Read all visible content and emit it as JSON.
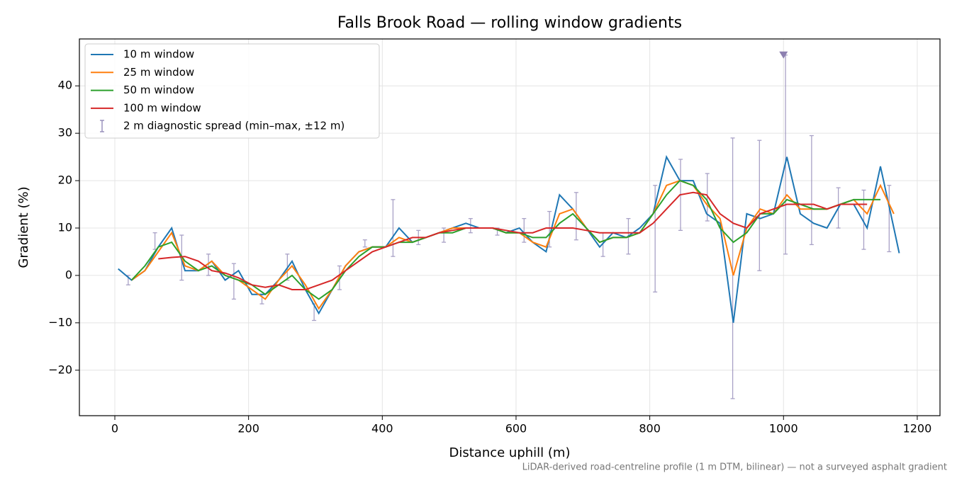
{
  "chart_data": {
    "type": "line",
    "title": "Falls Brook Road — rolling window gradients",
    "xlabel": "Distance uphill (m)",
    "ylabel": "Gradient (%)",
    "footnote": "LiDAR-derived road-centreline profile (1 m DTM, bilinear) — not a surveyed asphalt gradient",
    "xlim": [
      -53,
      1234
    ],
    "ylim": [
      -29.6,
      49.9
    ],
    "xticks": [
      0,
      200,
      400,
      600,
      800,
      1000,
      1200
    ],
    "yticks": [
      {
        "value": -20,
        "label": "−20"
      },
      {
        "value": -10,
        "label": "−10"
      },
      0,
      10,
      20,
      30,
      40
    ],
    "grid": true,
    "legend": "upper left",
    "x": [
      5,
      25,
      45,
      65,
      85,
      105,
      125,
      145,
      165,
      185,
      205,
      225,
      245,
      265,
      285,
      305,
      325,
      345,
      365,
      385,
      405,
      425,
      445,
      465,
      485,
      505,
      525,
      545,
      565,
      585,
      605,
      625,
      645,
      665,
      685,
      705,
      725,
      745,
      765,
      785,
      805,
      825,
      845,
      865,
      885,
      905,
      925,
      945,
      965,
      985,
      1005,
      1025,
      1045,
      1065,
      1085,
      1105,
      1125,
      1145,
      1165,
      1173
    ],
    "series": [
      {
        "name": "10 m window",
        "color": "#1f77b4",
        "values": [
          1.4,
          -1,
          1,
          6,
          10,
          1,
          1,
          3,
          -1,
          1,
          -4,
          -4,
          -1,
          3,
          -3,
          -8,
          -3,
          2,
          5,
          6,
          6,
          10,
          7,
          8,
          9,
          10,
          11,
          10,
          10,
          9,
          10,
          7,
          5,
          17,
          14,
          10,
          6,
          9,
          8,
          10,
          13,
          25,
          20,
          20,
          13,
          11,
          -10,
          13,
          12,
          13,
          25,
          13,
          11,
          10,
          15,
          15,
          10,
          23,
          10,
          4.7
        ]
      },
      {
        "name": "25 m window",
        "color": "#ff7f0e",
        "values": [
          null,
          -1,
          1,
          5,
          9,
          2,
          1,
          3,
          0,
          -1,
          -3,
          -5,
          -1,
          2,
          -2,
          -7,
          -3,
          2,
          5,
          6,
          6,
          8,
          7,
          8,
          9,
          10,
          10,
          10,
          10,
          9,
          9,
          7,
          6,
          13,
          14,
          10,
          7,
          8,
          8,
          9,
          13,
          19,
          20,
          19,
          15,
          12,
          0,
          10,
          14,
          13,
          17,
          14,
          14,
          14,
          15,
          16,
          13,
          19,
          13,
          null
        ]
      },
      {
        "name": "50 m window",
        "color": "#2ca02c",
        "values": [
          null,
          -1,
          2,
          6,
          7,
          3,
          1,
          2,
          0,
          -1,
          -2,
          -4,
          -2,
          0,
          -3,
          -5,
          -3,
          1,
          4,
          6,
          6,
          7,
          7,
          8,
          9,
          9,
          10,
          10,
          10,
          9,
          9,
          8,
          8,
          11,
          13,
          10,
          7,
          8,
          8,
          9,
          13,
          17,
          20,
          19,
          16,
          10,
          7,
          9,
          13,
          13,
          16,
          15,
          14,
          14,
          15,
          16,
          16,
          16,
          null,
          null
        ]
      },
      {
        "name": "100 m window",
        "color": "#d62728",
        "values": [
          null,
          null,
          null,
          3.5,
          3.8,
          4,
          3,
          1,
          0.5,
          -0.5,
          -2,
          -2.5,
          -2,
          -3,
          -3,
          -2,
          -1,
          1,
          3,
          5,
          6,
          7,
          8,
          8,
          9,
          9.5,
          10,
          10,
          10,
          9.5,
          9,
          9,
          10,
          10,
          10,
          9.5,
          9,
          9,
          9,
          9,
          11,
          14,
          17,
          17.5,
          17,
          13,
          11,
          10,
          13,
          14,
          15,
          15,
          15,
          14,
          15,
          15,
          15,
          null,
          null,
          null
        ]
      }
    ],
    "errorbars": {
      "name": "2 m diagnostic spread (min–max, ±12 m)",
      "color": "#8c82b3",
      "x": [
        20,
        60,
        100,
        140,
        178,
        220,
        258,
        298,
        336,
        374,
        416,
        454,
        492,
        532,
        572,
        612,
        650,
        690,
        730,
        768,
        808,
        846,
        886,
        924,
        964,
        1003,
        1042,
        1082,
        1120,
        1158
      ],
      "low": [
        -2,
        5.5,
        -1,
        0,
        -5,
        -6,
        -1,
        -9.5,
        -3,
        6,
        4,
        6.5,
        7,
        9,
        8.5,
        7,
        6,
        7.5,
        4,
        4.5,
        -3.5,
        9.5,
        11.5,
        -26,
        1,
        4.5,
        6.5,
        10,
        5.5,
        5
      ],
      "high": [
        0,
        9,
        8.5,
        4.5,
        2.5,
        -4,
        4.5,
        -6,
        2,
        7.5,
        16,
        9.5,
        10,
        12,
        10,
        12,
        13.5,
        17.5,
        9,
        12,
        19,
        24.5,
        21.5,
        29,
        28.5,
        46.5,
        29.5,
        18.5,
        18,
        19
      ]
    },
    "outlier": {
      "x": 1000,
      "y": 46.5
    }
  }
}
